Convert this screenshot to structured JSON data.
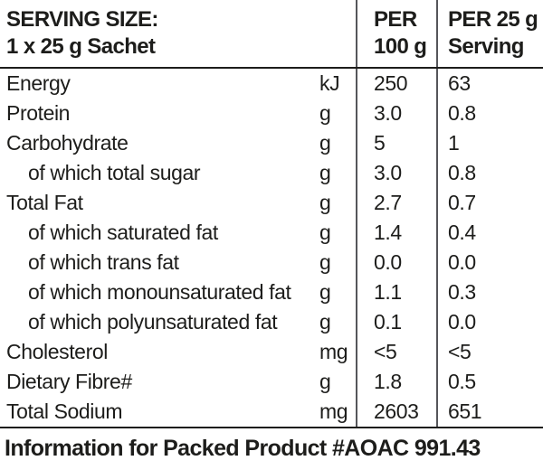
{
  "header": {
    "serving_size_line1": "SERVING SIZE:",
    "serving_size_line2": "1 x 25 g Sachet",
    "per100_line1": "PER",
    "per100_line2": "100 g",
    "per25_line1": "PER 25 g",
    "per25_line2": "Serving"
  },
  "rows": [
    {
      "label": "Energy",
      "indent": false,
      "unit": "kJ",
      "per100": "250",
      "per25": "63"
    },
    {
      "label": "Protein",
      "indent": false,
      "unit": "g",
      "per100": "3.0",
      "per25": "0.8"
    },
    {
      "label": "Carbohydrate",
      "indent": false,
      "unit": "g",
      "per100": "5",
      "per25": "1"
    },
    {
      "label": "of which total sugar",
      "indent": true,
      "unit": "g",
      "per100": "3.0",
      "per25": "0.8"
    },
    {
      "label": "Total Fat",
      "indent": false,
      "unit": "g",
      "per100": "2.7",
      "per25": "0.7"
    },
    {
      "label": "of which saturated fat",
      "indent": true,
      "unit": "g",
      "per100": "1.4",
      "per25": "0.4"
    },
    {
      "label": "of which trans fat",
      "indent": true,
      "unit": "g",
      "per100": "0.0",
      "per25": "0.0"
    },
    {
      "label": "of which monounsaturated fat",
      "indent": true,
      "unit": "g",
      "per100": "1.1",
      "per25": "0.3"
    },
    {
      "label": "of which polyunsaturated fat",
      "indent": true,
      "unit": "g",
      "per100": "0.1",
      "per25": "0.0"
    },
    {
      "label": "Cholesterol",
      "indent": false,
      "unit": "mg",
      "per100": "<5",
      "per25": "<5"
    },
    {
      "label": "Dietary Fibre#",
      "indent": false,
      "unit": "g",
      "per100": "1.8",
      "per25": "0.5"
    },
    {
      "label": "Total Sodium",
      "indent": false,
      "unit": "mg",
      "per100": "2603",
      "per25": "651"
    }
  ],
  "footer": {
    "note": "Information for Packed Product #AOAC 991.43"
  },
  "colors": {
    "text": "#1d1d1b",
    "horizontal_rule": "#1d1d1b",
    "vertical_divider": "#55565a",
    "background": "#ffffff"
  }
}
